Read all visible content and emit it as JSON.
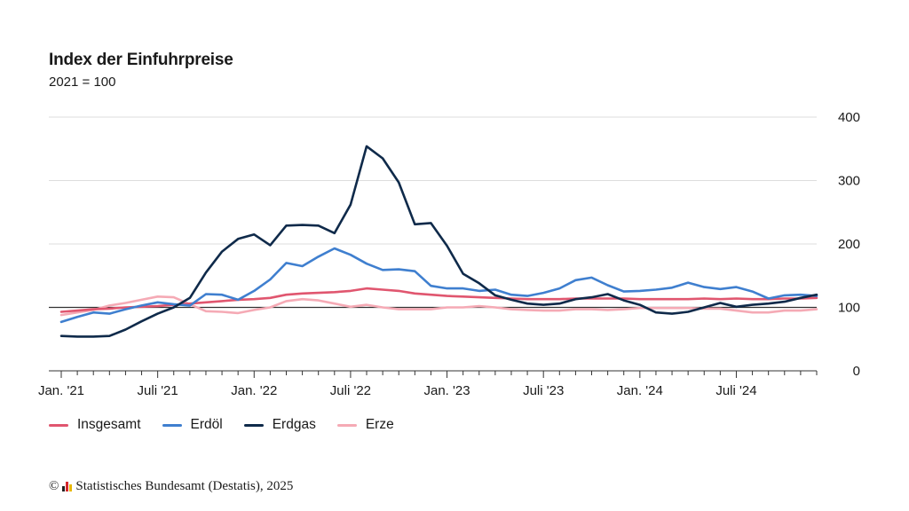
{
  "header": {
    "title": "Index der Einfuhrpreise",
    "subtitle": "2021 = 100"
  },
  "footer": {
    "copyright_symbol": "©",
    "source": "Statistisches Bundesamt (Destatis), 2025",
    "logo_colors": [
      "#222222",
      "#d6282c",
      "#e8b800"
    ]
  },
  "chart_data": {
    "type": "line",
    "x": [
      "2021-01",
      "2021-02",
      "2021-03",
      "2021-04",
      "2021-05",
      "2021-06",
      "2021-07",
      "2021-08",
      "2021-09",
      "2021-10",
      "2021-11",
      "2021-12",
      "2022-01",
      "2022-02",
      "2022-03",
      "2022-04",
      "2022-05",
      "2022-06",
      "2022-07",
      "2022-08",
      "2022-09",
      "2022-10",
      "2022-11",
      "2022-12",
      "2023-01",
      "2023-02",
      "2023-03",
      "2023-04",
      "2023-05",
      "2023-06",
      "2023-07",
      "2023-08",
      "2023-09",
      "2023-10",
      "2023-11",
      "2023-12",
      "2024-01",
      "2024-02",
      "2024-03",
      "2024-04",
      "2024-05",
      "2024-06",
      "2024-07",
      "2024-08",
      "2024-09",
      "2024-10",
      "2024-11",
      "2024-12"
    ],
    "tick_labels": [
      "Jan. '21",
      "Juli '21",
      "Jan. '22",
      "Juli '22",
      "Jan. '23",
      "Juli '23",
      "Jan. '24",
      "Juli '24"
    ],
    "tick_months": [
      "2021-01",
      "2021-07",
      "2022-01",
      "2022-07",
      "2023-01",
      "2023-07",
      "2024-01",
      "2024-07"
    ],
    "ylim": [
      0,
      400
    ],
    "yticks": [
      0,
      100,
      200,
      300,
      400
    ],
    "reference_line": 100,
    "grid": true,
    "legend_position": "bottom-left",
    "series": [
      {
        "name": "Insgesamt",
        "color": "#e0566f",
        "values": [
          93,
          95,
          97,
          98,
          100,
          101,
          102,
          104,
          106,
          108,
          110,
          112,
          113,
          115,
          120,
          122,
          123,
          124,
          126,
          130,
          128,
          126,
          122,
          120,
          118,
          117,
          116,
          115,
          114,
          113,
          113,
          113,
          114,
          114,
          114,
          114,
          113,
          113,
          113,
          113,
          114,
          113,
          114,
          113,
          113,
          114,
          114,
          115
        ]
      },
      {
        "name": "Erdöl",
        "color": "#3f7fcf",
        "values": [
          77,
          85,
          92,
          90,
          97,
          103,
          108,
          105,
          103,
          121,
          120,
          112,
          126,
          144,
          170,
          165,
          180,
          193,
          183,
          169,
          159,
          160,
          157,
          134,
          130,
          130,
          126,
          128,
          120,
          118,
          123,
          130,
          143,
          147,
          135,
          125,
          126,
          128,
          131,
          139,
          132,
          129,
          132,
          125,
          114,
          119,
          120,
          118
        ]
      },
      {
        "name": "Erdgas",
        "color": "#0f2a4a",
        "values": [
          55,
          54,
          54,
          55,
          65,
          78,
          90,
          100,
          115,
          155,
          188,
          208,
          215,
          198,
          229,
          230,
          229,
          217,
          262,
          354,
          335,
          297,
          231,
          233,
          197,
          153,
          138,
          119,
          112,
          106,
          104,
          106,
          113,
          116,
          121,
          111,
          104,
          92,
          90,
          93,
          100,
          107,
          101,
          104,
          106,
          109,
          115,
          120
        ]
      },
      {
        "name": "Erze",
        "color": "#f5aab5",
        "values": [
          88,
          92,
          96,
          103,
          107,
          112,
          117,
          116,
          105,
          94,
          93,
          91,
          96,
          100,
          110,
          113,
          111,
          106,
          101,
          104,
          100,
          97,
          97,
          97,
          100,
          100,
          102,
          100,
          97,
          96,
          95,
          95,
          97,
          97,
          96,
          97,
          99,
          99,
          99,
          99,
          98,
          98,
          95,
          92,
          92,
          95,
          95,
          97
        ]
      }
    ]
  }
}
